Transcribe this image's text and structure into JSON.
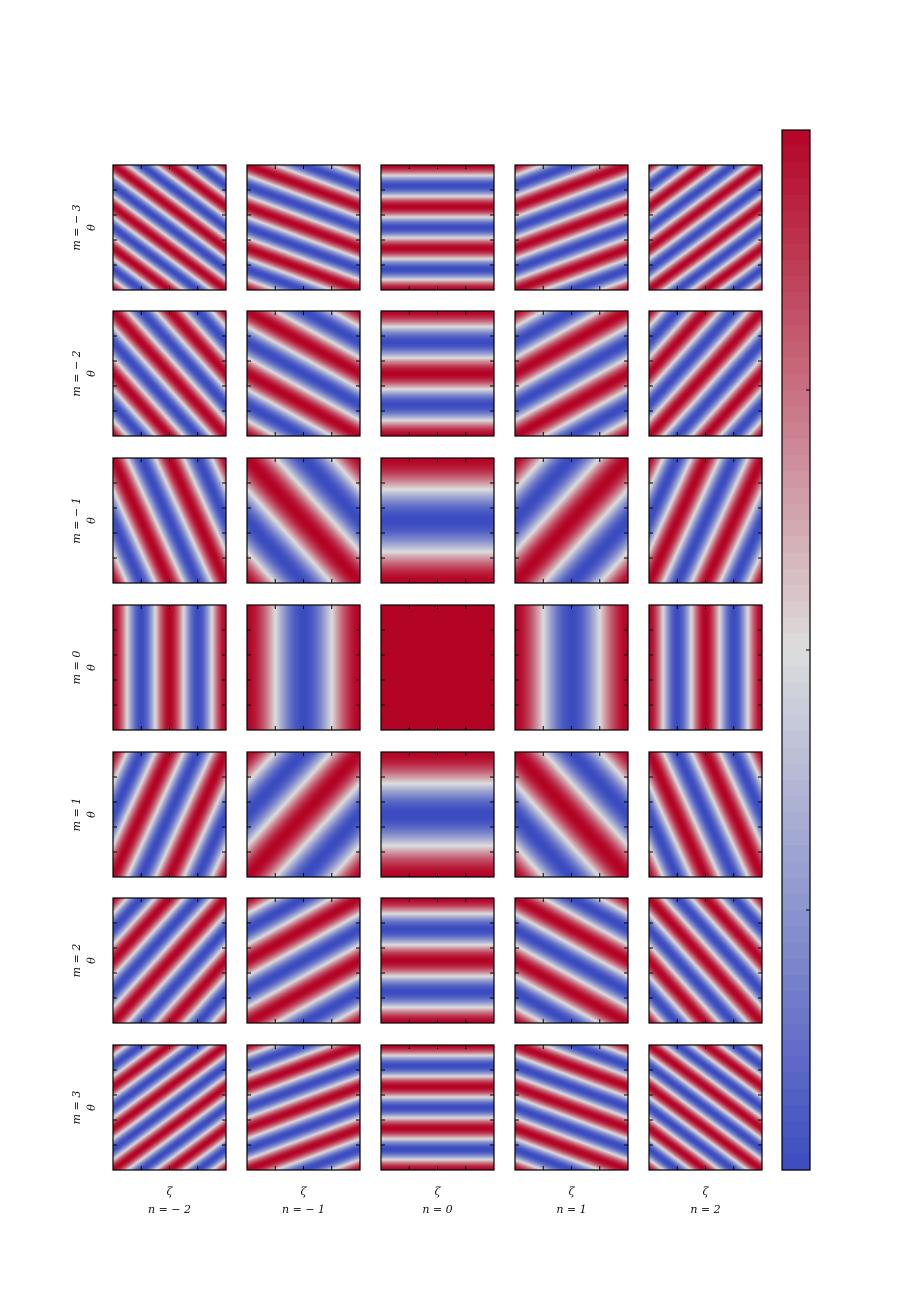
{
  "chart_data": {
    "type": "heatmap",
    "title": "",
    "colormap": "coolwarm",
    "colormap_low": "#3b4cc0",
    "colormap_mid": "#dddddd",
    "colormap_high": "#b40426",
    "value_range": [
      -1,
      1
    ],
    "function": "cos(m*theta + n*zeta)",
    "x_variable": "ζ",
    "y_variable": "θ",
    "domain": [
      0,
      6.283
    ],
    "m_values": [
      -3,
      -2,
      -1,
      0,
      1,
      2,
      3
    ],
    "n_values": [
      -2,
      -1,
      0,
      1,
      2
    ],
    "row_labels": [
      "m = − 3",
      "m = − 2",
      "m = − 1",
      "m = 0",
      "m = 1",
      "m = 2",
      "m = 3"
    ],
    "col_labels": [
      "n = − 2",
      "n = − 1",
      "n = 0",
      "n = 1",
      "n = 2"
    ],
    "xlabel": "ζ",
    "ylabel": "θ",
    "colorbar": true,
    "colorbar_tick_labels": []
  }
}
